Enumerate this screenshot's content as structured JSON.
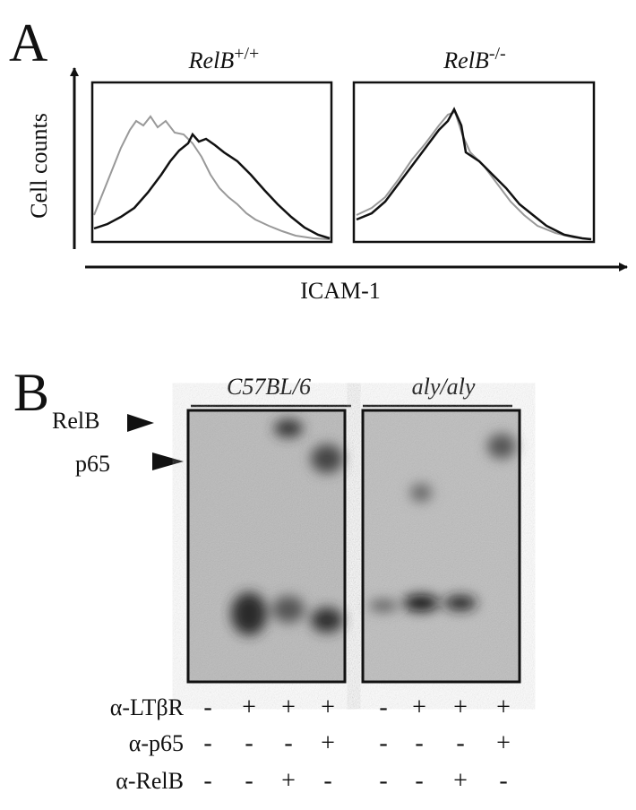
{
  "panel_a": {
    "label": "A",
    "histograms": [
      {
        "title": {
          "name": "RelB",
          "superscript": "+/+"
        }
      },
      {
        "title": {
          "name": "RelB",
          "superscript": "-/-"
        }
      }
    ],
    "y_axis": "Cell counts",
    "x_axis": "ICAM-1"
  },
  "panel_b": {
    "label": "B",
    "groups": [
      "C57BL/6",
      "aly/aly"
    ],
    "markers": [
      "RelB",
      "p65"
    ],
    "rows": [
      {
        "label": "α-LTβR",
        "signs": [
          "-",
          "+",
          "+",
          "+",
          "-",
          "+",
          "+",
          "+"
        ]
      },
      {
        "label": "α-p65",
        "signs": [
          "-",
          "-",
          "-",
          "+",
          "-",
          "-",
          "-",
          "+"
        ]
      },
      {
        "label": "α-RelB",
        "signs": [
          "-",
          "-",
          "+",
          "-",
          "-",
          "-",
          "+",
          "-"
        ]
      }
    ]
  }
}
